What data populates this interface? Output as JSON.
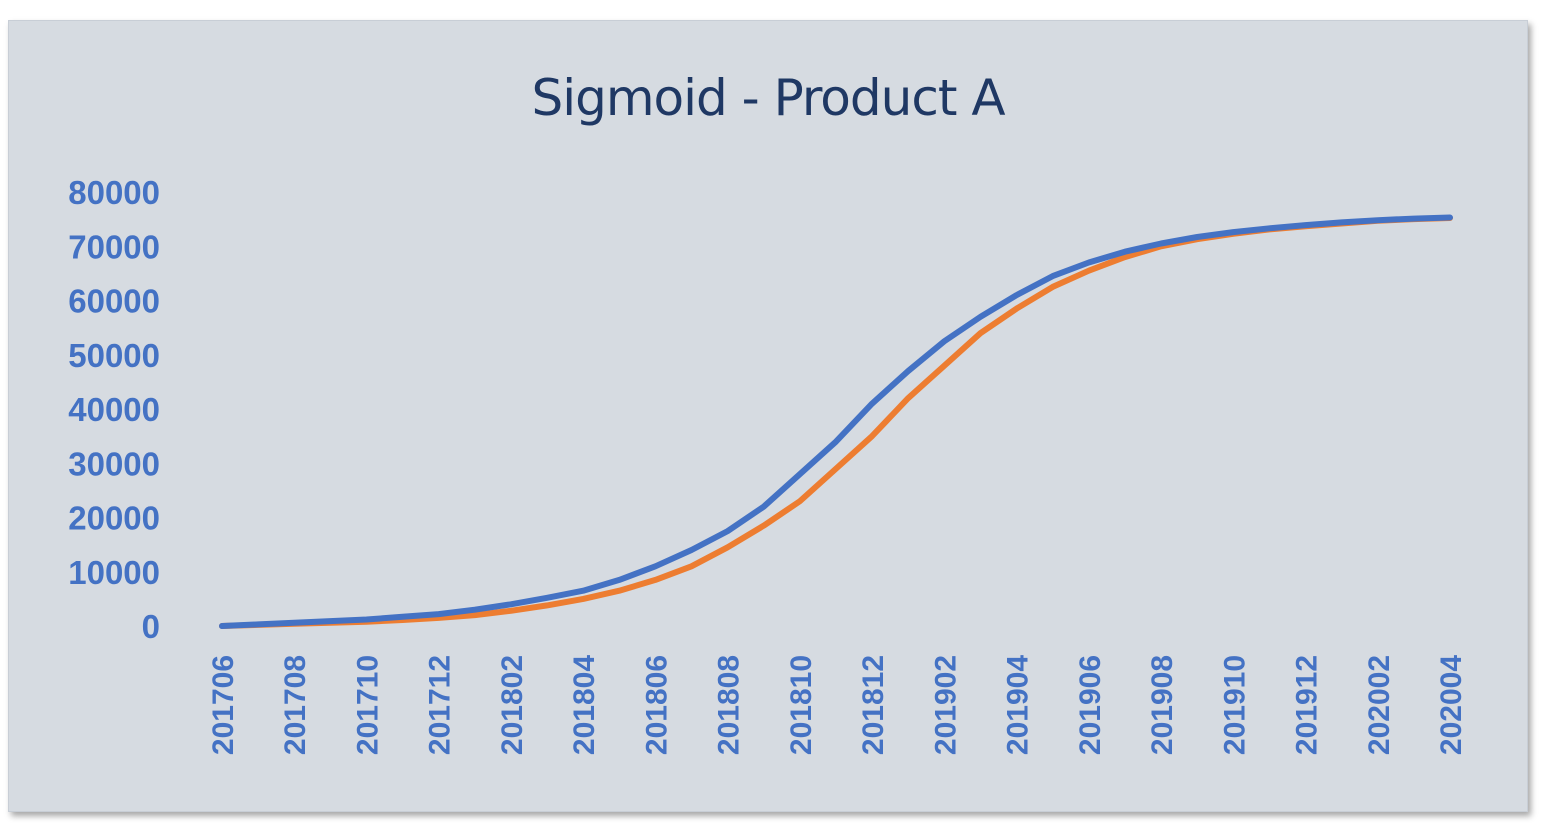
{
  "chart_data": {
    "type": "line",
    "title": "Sigmoid - Product A",
    "xlabel": "",
    "ylabel": "",
    "ylim": [
      0,
      80000
    ],
    "yticks": [
      "0",
      "10000",
      "20000",
      "30000",
      "40000",
      "50000",
      "60000",
      "70000",
      "80000"
    ],
    "x": [
      "201706",
      "201707",
      "201708",
      "201709",
      "201710",
      "201711",
      "201712",
      "201801",
      "201802",
      "201803",
      "201804",
      "201805",
      "201806",
      "201807",
      "201808",
      "201809",
      "201810",
      "201811",
      "201812",
      "201901",
      "201902",
      "201903",
      "201904",
      "201905",
      "201906",
      "201907",
      "201908",
      "201909",
      "201910",
      "201911",
      "201912",
      "202001",
      "202002",
      "202003",
      "202004"
    ],
    "xtick_labels": [
      "201706",
      "201708",
      "201710",
      "201712",
      "201802",
      "201804",
      "201806",
      "201808",
      "201810",
      "201812",
      "201902",
      "201904",
      "201906",
      "201908",
      "201910",
      "201912",
      "202002",
      "202004"
    ],
    "grid": false,
    "legend": "none",
    "series": [
      {
        "color": "#4472c4",
        "values": [
          0,
          300,
          600,
          900,
          1200,
          1700,
          2200,
          3000,
          4000,
          5200,
          6500,
          8500,
          11000,
          14000,
          17500,
          22000,
          28000,
          34000,
          41000,
          47000,
          52500,
          57000,
          61000,
          64500,
          67000,
          69000,
          70500,
          71700,
          72600,
          73300,
          73900,
          74400,
          74800,
          75100,
          75300
        ]
      },
      {
        "color": "#ed7d31",
        "values": [
          0,
          200,
          400,
          600,
          800,
          1100,
          1500,
          2000,
          2800,
          3800,
          5000,
          6500,
          8500,
          11000,
          14500,
          18500,
          23000,
          29000,
          35000,
          42000,
          48000,
          54000,
          58500,
          62500,
          65500,
          68000,
          70000,
          71300,
          72300,
          73100,
          73700,
          74200,
          74700,
          75000,
          75200
        ]
      }
    ]
  }
}
